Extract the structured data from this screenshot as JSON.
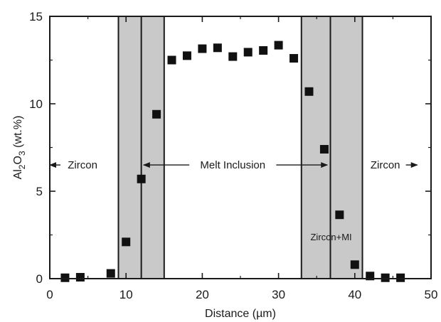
{
  "chart_data": {
    "type": "scatter",
    "title": "",
    "xlabel": "Distance (µm)",
    "ylabel_parts": [
      "Al",
      "2",
      "O",
      "3",
      " (wt.%)"
    ],
    "xlim": [
      0,
      50
    ],
    "ylim": [
      0,
      15
    ],
    "x_ticks": [
      "0",
      "10",
      "20",
      "30",
      "40",
      "50"
    ],
    "y_ticks": [
      "0",
      "5",
      "10",
      "15"
    ],
    "grid": false,
    "marker": "square",
    "marker_color": "#111111",
    "band_color": "#c9c9c9",
    "points": [
      {
        "x": 2,
        "y": 0.05
      },
      {
        "x": 4,
        "y": 0.08
      },
      {
        "x": 8,
        "y": 0.3
      },
      {
        "x": 10,
        "y": 2.1
      },
      {
        "x": 12,
        "y": 5.7
      },
      {
        "x": 14,
        "y": 9.4
      },
      {
        "x": 16,
        "y": 12.5
      },
      {
        "x": 18,
        "y": 12.75
      },
      {
        "x": 20,
        "y": 13.15
      },
      {
        "x": 22,
        "y": 13.2
      },
      {
        "x": 24,
        "y": 12.7
      },
      {
        "x": 26,
        "y": 12.95
      },
      {
        "x": 28,
        "y": 13.05
      },
      {
        "x": 30,
        "y": 13.35
      },
      {
        "x": 32,
        "y": 12.6
      },
      {
        "x": 34,
        "y": 10.7
      },
      {
        "x": 36,
        "y": 7.4
      },
      {
        "x": 38,
        "y": 3.65
      },
      {
        "x": 40,
        "y": 0.8
      },
      {
        "x": 42,
        "y": 0.15
      },
      {
        "x": 44,
        "y": 0.05
      },
      {
        "x": 46,
        "y": 0.05
      }
    ],
    "shaded_bands": [
      {
        "x0": 9,
        "x1": 15,
        "divider": 12
      },
      {
        "x0": 33,
        "x1": 41,
        "divider": 36.8
      }
    ],
    "annotations": [
      {
        "text": "Zircon",
        "x": 4.3,
        "y": 6.5,
        "anchor": "middle",
        "arrow": {
          "from": 1.4,
          "to": 0,
          "y": 6.5
        }
      },
      {
        "text": "Melt Inclusion",
        "x": 24,
        "y": 6.5,
        "anchor": "middle",
        "arrows": [
          {
            "from": 18.3,
            "to": 12.3,
            "y": 6.5
          },
          {
            "from": 29.7,
            "to": 36.4,
            "y": 6.5
          }
        ]
      },
      {
        "text": "Zircon",
        "x": 44,
        "y": 6.5,
        "anchor": "middle",
        "arrow": {
          "from": 46.7,
          "to": 48.2,
          "y": 6.5
        }
      },
      {
        "text": "Zircon+MI",
        "x": 36.9,
        "y": 2.4,
        "anchor": "middle",
        "small": true
      }
    ]
  }
}
